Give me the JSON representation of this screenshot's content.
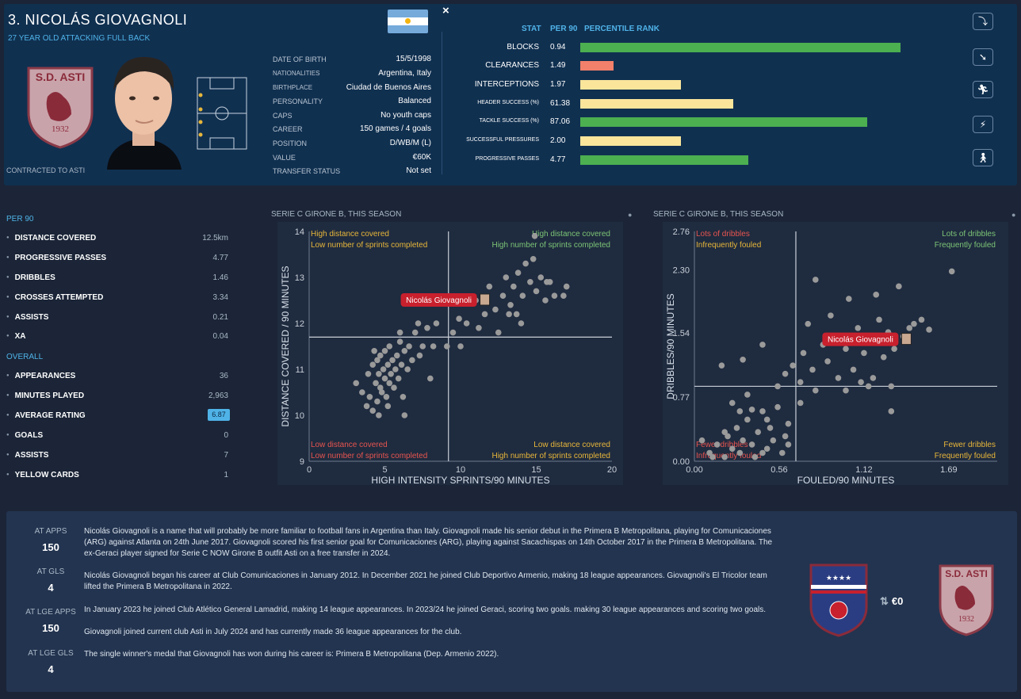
{
  "header": {
    "name": "3. NICOLÁS GIOVAGNOLI",
    "subtitle": "27 YEAR OLD ATTACKING FULL BACK",
    "contract": "CONTRACTED TO ASTI",
    "close": "×",
    "club_badge": {
      "name": "S.D. ASTI",
      "year": "1932"
    }
  },
  "info": [
    {
      "label": "DATE OF BIRTH",
      "value": "15/5/1998"
    },
    {
      "label": "NATIONALITIES",
      "value": "Argentina, Italy"
    },
    {
      "label": "BIRTHPLACE",
      "value": "Ciudad de Buenos Aires"
    },
    {
      "label": "PERSONALITY",
      "value": "Balanced"
    },
    {
      "label": "CAPS",
      "value": "No youth caps"
    },
    {
      "label": "CAREER",
      "value": "150 games /  4 goals"
    },
    {
      "label": "POSITION",
      "value": "D/WB/M (L)"
    },
    {
      "label": "VALUE",
      "value": "€60K"
    },
    {
      "label": "TRANSFER STATUS",
      "value": "Not set"
    }
  ],
  "stats_header": {
    "stat": "STAT",
    "per90": "PER 90",
    "rank": "PERCENTILE RANK"
  },
  "stats": [
    {
      "label": "BLOCKS",
      "value": "0.94",
      "pct": 0.86,
      "color": "#4caf50"
    },
    {
      "label": "CLEARANCES",
      "value": "1.49",
      "pct": 0.09,
      "color": "#f2806a"
    },
    {
      "label": "INTERCEPTIONS",
      "value": "1.97",
      "pct": 0.27,
      "color": "#fbe59b"
    },
    {
      "label": "HEADER SUCCESS (%)",
      "value": "61.38",
      "pct": 0.41,
      "color": "#fbe59b"
    },
    {
      "label": "TACKLE SUCCESS (%)",
      "value": "87.06",
      "pct": 0.77,
      "color": "#4caf50"
    },
    {
      "label": "SUCCESSFUL PRESSURES",
      "value": "2.00",
      "pct": 0.27,
      "color": "#fbe59b"
    },
    {
      "label": "PROGRESSIVE PASSES",
      "value": "4.77",
      "pct": 0.45,
      "color": "#4caf50"
    }
  ],
  "side_icons": [
    "tackle-icon",
    "slide-icon",
    "run-icon",
    "sprint-icon",
    "walk-icon"
  ],
  "per90": {
    "title": "PER 90",
    "rows": [
      {
        "label": "DISTANCE COVERED",
        "value": "12.5km"
      },
      {
        "label": "PROGRESSIVE PASSES",
        "value": "4.77"
      },
      {
        "label": "DRIBBLES",
        "value": "1.46"
      },
      {
        "label": "CROSSES ATTEMPTED",
        "value": "3.34"
      },
      {
        "label": "ASSISTS",
        "value": "0.21"
      },
      {
        "label": "XA",
        "value": "0.04"
      }
    ]
  },
  "overall": {
    "title": "OVERALL",
    "rows": [
      {
        "label": "APPEARANCES",
        "value": "36"
      },
      {
        "label": "MINUTES PLAYED",
        "value": "2,963"
      },
      {
        "label": "AVERAGE RATING",
        "value": "6.87"
      },
      {
        "label": "GOALS",
        "value": "0"
      },
      {
        "label": "ASSISTS",
        "value": "7"
      },
      {
        "label": "YELLOW CARDS",
        "value": "1"
      }
    ]
  },
  "chart_data": [
    {
      "type": "scatter",
      "title": "SERIE C GIRONE B, THIS SEASON",
      "xlabel": "HIGH INTENSITY SPRINTS/90 MINUTES",
      "ylabel": "DISTANCE COVERED / 90 MINUTES",
      "xlim": [
        0,
        20
      ],
      "ylim": [
        9,
        14
      ],
      "xticks": [
        "0",
        "5",
        "10",
        "15",
        "20"
      ],
      "yticks": [
        "9",
        "10",
        "11",
        "12",
        "13",
        "14"
      ],
      "xline": 9.2,
      "yline": 11.7,
      "highlight": {
        "name": "Nicolás Giovagnoli",
        "x": 11.6,
        "y": 12.5
      },
      "quadrants": {
        "tl": [
          "High distance covered",
          "Low number of sprints completed"
        ],
        "tr": [
          "High distance covered",
          "High number of sprints completed"
        ],
        "bl": [
          "Low distance covered",
          "Low number of sprints completed"
        ],
        "br": [
          "Low distance covered",
          "High number of sprints completed"
        ]
      },
      "points": [
        [
          3.1,
          10.7
        ],
        [
          3.5,
          10.5
        ],
        [
          3.8,
          10.2
        ],
        [
          3.9,
          10.9
        ],
        [
          4.0,
          10.4
        ],
        [
          4.2,
          10.1
        ],
        [
          4.2,
          11.1
        ],
        [
          4.4,
          10.7
        ],
        [
          4.5,
          10.3
        ],
        [
          4.5,
          11.2
        ],
        [
          4.6,
          10.9
        ],
        [
          4.7,
          10.6
        ],
        [
          4.7,
          11.3
        ],
        [
          4.8,
          10.5
        ],
        [
          4.9,
          11.0
        ],
        [
          5.0,
          10.8
        ],
        [
          5.0,
          11.4
        ],
        [
          5.1,
          10.4
        ],
        [
          5.2,
          11.1
        ],
        [
          5.3,
          10.7
        ],
        [
          5.3,
          11.5
        ],
        [
          5.4,
          10.9
        ],
        [
          5.5,
          11.2
        ],
        [
          5.6,
          10.6
        ],
        [
          5.7,
          11.0
        ],
        [
          5.8,
          11.3
        ],
        [
          5.9,
          10.8
        ],
        [
          6.0,
          11.6
        ],
        [
          6.1,
          11.1
        ],
        [
          6.2,
          10.4
        ],
        [
          6.3,
          11.4
        ],
        [
          6.5,
          11.0
        ],
        [
          6.6,
          11.5
        ],
        [
          6.8,
          11.2
        ],
        [
          7.0,
          11.8
        ],
        [
          7.2,
          12.0
        ],
        [
          7.5,
          11.5
        ],
        [
          7.8,
          11.9
        ],
        [
          8.2,
          11.5
        ],
        [
          8.4,
          12.0
        ],
        [
          9.1,
          11.5
        ],
        [
          9.9,
          12.1
        ],
        [
          10.4,
          12.0
        ],
        [
          10.8,
          12.5
        ],
        [
          11.2,
          11.9
        ],
        [
          11.6,
          12.2
        ],
        [
          11.9,
          12.8
        ],
        [
          12.3,
          12.3
        ],
        [
          12.8,
          12.6
        ],
        [
          13.0,
          13.0
        ],
        [
          13.3,
          12.4
        ],
        [
          13.5,
          12.8
        ],
        [
          13.8,
          13.1
        ],
        [
          14.1,
          12.6
        ],
        [
          14.3,
          13.3
        ],
        [
          14.6,
          12.9
        ],
        [
          14.8,
          13.4
        ],
        [
          15.0,
          12.7
        ],
        [
          15.3,
          13.0
        ],
        [
          15.6,
          12.5
        ],
        [
          15.9,
          12.9
        ],
        [
          16.2,
          12.6
        ],
        [
          16.8,
          12.6
        ],
        [
          17.0,
          12.8
        ],
        [
          14.9,
          13.9
        ],
        [
          13.2,
          12.2
        ],
        [
          12.5,
          11.8
        ],
        [
          10.0,
          11.5
        ],
        [
          9.5,
          11.8
        ],
        [
          8.0,
          10.8
        ],
        [
          6.3,
          10.0
        ],
        [
          5.2,
          10.2
        ],
        [
          4.6,
          10.0
        ],
        [
          7.3,
          11.3
        ],
        [
          6.0,
          11.8
        ],
        [
          4.3,
          11.4
        ],
        [
          14.0,
          12.0
        ],
        [
          13.7,
          12.2
        ],
        [
          15.7,
          12.9
        ],
        [
          11.0,
          12.5
        ]
      ]
    },
    {
      "type": "scatter",
      "title": "SERIE C GIRONE B, THIS SEASON",
      "xlabel": "FOULED/90 MINUTES",
      "ylabel": "DRIBBLES/90 MINUTES",
      "xlim": [
        0,
        2
      ],
      "ylim": [
        0,
        2.76
      ],
      "xticks": [
        "0.00",
        "0.56",
        "1.12",
        "1.69"
      ],
      "yticks": [
        "0.00",
        "0.77",
        "1.54",
        "2.30",
        "2.76"
      ],
      "xline": 0.67,
      "yline": 0.9,
      "highlight": {
        "name": "Nicolás Giovagnoli",
        "x": 1.4,
        "y": 1.46
      },
      "quadrants": {
        "tl": [
          "Lots of dribbles",
          "Infrequently fouled"
        ],
        "tr": [
          "Lots of dribbles",
          "Frequently fouled"
        ],
        "bl": [
          "Fewer dribbles",
          "Infrequently fouled"
        ],
        "br": [
          "Fewer dribbles",
          "Frequently fouled"
        ]
      },
      "points": [
        [
          0.1,
          0.1
        ],
        [
          0.15,
          0.2
        ],
        [
          0.2,
          0.05
        ],
        [
          0.22,
          0.3
        ],
        [
          0.25,
          0.15
        ],
        [
          0.28,
          0.4
        ],
        [
          0.3,
          0.1
        ],
        [
          0.32,
          0.25
        ],
        [
          0.35,
          0.5
        ],
        [
          0.38,
          0.2
        ],
        [
          0.4,
          0.05
        ],
        [
          0.42,
          0.35
        ],
        [
          0.45,
          0.6
        ],
        [
          0.48,
          0.15
        ],
        [
          0.5,
          0.4
        ],
        [
          0.52,
          0.25
        ],
        [
          0.55,
          0.65
        ],
        [
          0.58,
          0.1
        ],
        [
          0.6,
          0.3
        ],
        [
          0.62,
          0.45
        ],
        [
          0.3,
          0.6
        ],
        [
          0.25,
          0.7
        ],
        [
          0.35,
          0.8
        ],
        [
          0.18,
          1.15
        ],
        [
          0.32,
          1.22
        ],
        [
          0.45,
          1.4
        ],
        [
          0.6,
          1.05
        ],
        [
          0.65,
          1.15
        ],
        [
          0.7,
          0.95
        ],
        [
          0.72,
          1.3
        ],
        [
          0.75,
          1.65
        ],
        [
          0.78,
          1.1
        ],
        [
          0.8,
          2.18
        ],
        [
          0.85,
          1.4
        ],
        [
          0.88,
          1.2
        ],
        [
          0.9,
          1.5
        ],
        [
          0.95,
          1.0
        ],
        [
          1.0,
          1.35
        ],
        [
          1.02,
          1.95
        ],
        [
          1.05,
          1.1
        ],
        [
          1.08,
          1.6
        ],
        [
          1.1,
          0.95
        ],
        [
          1.12,
          1.3
        ],
        [
          1.15,
          1.45
        ],
        [
          1.18,
          1.0
        ],
        [
          1.2,
          2.0
        ],
        [
          1.22,
          1.7
        ],
        [
          1.25,
          1.25
        ],
        [
          1.28,
          1.55
        ],
        [
          1.3,
          0.9
        ],
        [
          1.32,
          1.35
        ],
        [
          1.35,
          2.1
        ],
        [
          1.38,
          1.5
        ],
        [
          1.42,
          1.6
        ],
        [
          1.45,
          1.65
        ],
        [
          1.5,
          1.7
        ],
        [
          1.55,
          1.58
        ],
        [
          1.7,
          2.28
        ],
        [
          1.3,
          0.6
        ],
        [
          0.9,
          1.75
        ],
        [
          0.55,
          0.9
        ],
        [
          0.8,
          0.85
        ],
        [
          1.0,
          0.85
        ],
        [
          1.15,
          0.9
        ],
        [
          0.7,
          0.7
        ],
        [
          0.62,
          0.2
        ],
        [
          0.45,
          0.1
        ],
        [
          0.2,
          0.35
        ],
        [
          0.12,
          0.05
        ],
        [
          0.05,
          0.25
        ],
        [
          0.48,
          0.5
        ],
        [
          0.38,
          0.62
        ]
      ]
    }
  ],
  "career_apps": [
    {
      "label": "AT APPS",
      "value": "150"
    },
    {
      "label": "AT GLS",
      "value": "4"
    },
    {
      "label": "AT LGE APPS",
      "value": "150"
    },
    {
      "label": "AT LGE GLS",
      "value": "4"
    }
  ],
  "bio": [
    "Nicolás Giovagnoli is a name that will probably be more familiar to football fans in Argentina than Italy. Giovagnoli made his senior debut in the Primera B Metropolitana, playing for Comunicaciones (ARG) against Atlanta on 24th June 2017. Giovagnoli scored his first senior goal for Comunicaciones (ARG), playing against Sacachispas on 14th October 2017 in the Primera B Metropolitana. The ex-Geraci player signed for Serie C NOW Girone B outfit Asti on a free transfer in 2024.",
    "Nicolás Giovagnoli began his career at Club Comunicaciones in January 2012. In December 2021 he joined Club Deportivo Armenio, making 18 league appearances. Giovagnoli's El Tricolor team lifted the Primera B Metropolitana in 2022.",
    "In January 2023 he joined Club Atlético General Lamadrid, making 14 league appearances. In 2023/24 he joined Geraci, scoring two goals. making 30 league appearances and scoring two goals.",
    "Giovagnoli joined current club Asti in July 2024 and has currently made 36 league appearances for the club.",
    "The single winner's medal that Giovagnoli has won during his career is: Primera B Metropolitana (Dep. Armenio 2022)."
  ],
  "transfer": {
    "fee": "€0",
    "to_badge": {
      "name": "S.D. ASTI",
      "year": "1932"
    }
  }
}
